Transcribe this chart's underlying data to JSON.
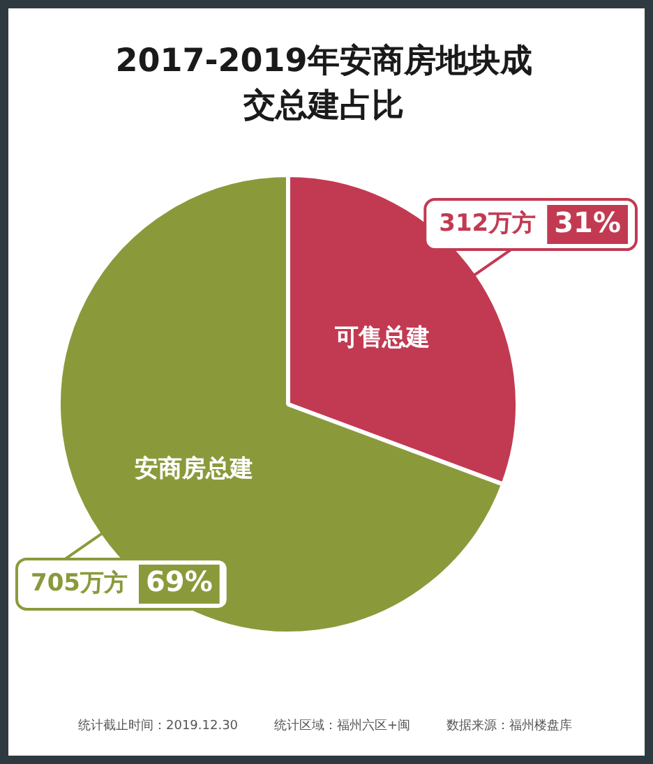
{
  "chart_data": {
    "type": "pie",
    "title": "2017-2019年安商房地块成交总建占比",
    "categories": [
      "可售总建",
      "安商房总建"
    ],
    "values": [
      312,
      705
    ],
    "value_labels": [
      "312万方",
      "705万方"
    ],
    "colors": [
      "#c23a52",
      "#8a9a3b"
    ],
    "annotations": [
      {
        "text": "31%",
        "x": "可售总建"
      },
      {
        "text": "69%",
        "x": "安商房总建"
      },
      "统计截止时间：2019.12.30",
      "统计区域：福州六区+闽",
      "数据来源：福州楼盘库"
    ],
    "legend": false
  }
}
